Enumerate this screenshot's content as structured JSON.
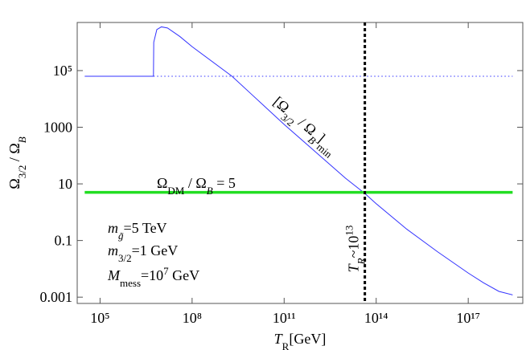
{
  "chart_data": {
    "type": "line",
    "log_x": true,
    "log_y": true,
    "xlabel": [
      {
        "t": "T",
        "i": true
      },
      {
        "t": "R",
        "s": "sub"
      },
      {
        "t": "[GeV]"
      }
    ],
    "ylabel": [
      {
        "t": "Ω"
      },
      {
        "t": "3/2",
        "s": "sub"
      },
      {
        "t": " / Ω"
      },
      {
        "t": "B",
        "s": "sub",
        "i": true
      }
    ],
    "xlim": [
      18000,
      6e+18
    ],
    "ylim": [
      0.0006,
      5000000
    ],
    "xticks": [
      {
        "value": 100000,
        "label": "10⁵"
      },
      {
        "value": 100000000,
        "label": "10⁸"
      },
      {
        "value": 100000000000,
        "label": "10¹¹"
      },
      {
        "value": 100000000000000,
        "label": "10¹⁴"
      },
      {
        "value": 100000000000000000,
        "label": "10¹⁷"
      }
    ],
    "yticks": [
      0.001,
      0.1,
      10,
      1000,
      {
        "value": 100000,
        "label": "10⁵"
      }
    ],
    "series": [
      {
        "color": "#3333ff",
        "style": "solid",
        "x": [
          31600,
          5500000,
          5620000,
          7080000,
          10000000,
          15800000,
          39800000,
          100000000,
          2000000000,
          10000000000,
          100000000000,
          1000000000000,
          10000000000000,
          42700000000000,
          100000000000000,
          1000000000000000,
          10000000000000000,
          100000000000000000,
          316000000000000000,
          1000000000000000000,
          2800000000000000000
        ],
        "values": [
          63000,
          63000,
          1000000,
          2800000,
          3500000,
          3200000,
          1600000,
          700000,
          63000,
          12600,
          1260,
          141,
          15.8,
          4.6,
          2,
          0.25,
          0.04,
          0.0071,
          0.0032,
          0.0016,
          0.0012
        ]
      },
      {
        "color": "#3333ff",
        "style": "dotted",
        "x": [
          5500000,
          2800000000000000000
        ],
        "values": [
          63000,
          63000
        ]
      },
      {
        "color": "#22dd22",
        "style": "thick",
        "x": [
          31600,
          2800000000000000000
        ],
        "values": [
          5,
          5
        ]
      }
    ],
    "vline": {
      "x": 42700000000000,
      "color": "#000000"
    },
    "annotations": [
      [
        {
          "t": "[Ω"
        },
        {
          "t": "3/2",
          "s": "sub"
        },
        {
          "t": " / Ω"
        },
        {
          "t": "B",
          "s": "sub",
          "i": true
        },
        {
          "t": "]"
        },
        {
          "t": "min",
          "s": "sub"
        }
      ],
      [
        {
          "t": "Ω"
        },
        {
          "t": "DM",
          "s": "sub"
        },
        {
          "t": " / Ω"
        },
        {
          "t": "B",
          "s": "sub",
          "i": true
        },
        {
          "t": " = 5"
        }
      ],
      [
        {
          "t": "T",
          "i": true
        },
        {
          "t": "R",
          "s": "sub",
          "i": true
        },
        {
          "t": "~10"
        },
        {
          "t": "13",
          "s": "super"
        }
      ],
      [
        {
          "t": "m",
          "i": true
        },
        {
          "t": "g̃",
          "s": "sub",
          "i": true
        },
        {
          "t": "=5 TeV"
        }
      ],
      [
        {
          "t": "m",
          "i": true
        },
        {
          "t": "3/2",
          "s": "sub"
        },
        {
          "t": "=1 GeV"
        }
      ],
      [
        {
          "t": "M",
          "i": true
        },
        {
          "t": "mess",
          "s": "sub"
        },
        {
          "t": "=10"
        },
        {
          "t": "7",
          "s": "super"
        },
        {
          "t": " GeV"
        }
      ]
    ]
  }
}
